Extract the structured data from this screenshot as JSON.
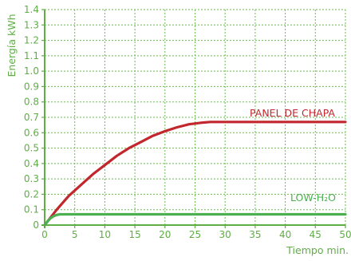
{
  "colors": {
    "axis": "#5fae45",
    "grid": "#6dbb52",
    "panel": "#c1272d",
    "low": "#4caf50"
  },
  "chart_data": {
    "type": "line",
    "title": "",
    "xlabel": "Tiempo min.",
    "ylabel": "Energía kWh",
    "xlim": [
      0,
      50
    ],
    "ylim": [
      0,
      1.4
    ],
    "xticks": [
      "0",
      "5",
      "10",
      "15",
      "20",
      "25",
      "30",
      "35",
      "40",
      "45",
      "50"
    ],
    "yticks": [
      "0",
      "0.1",
      "0.2",
      "0.3",
      "0.4",
      "0.5",
      "0.6",
      "0.7",
      "0.8",
      "0.9",
      "1.0",
      "1.1",
      "1.2",
      "1.3",
      "1.4"
    ],
    "grid": true,
    "series": [
      {
        "name": "PANEL DE CHAPA",
        "color": "#c1272d",
        "x": [
          0,
          2,
          4,
          6,
          8,
          10,
          12,
          14,
          16,
          18,
          20,
          22,
          24,
          26,
          27.5,
          30,
          35,
          40,
          45,
          50
        ],
        "y": [
          0,
          0.1,
          0.19,
          0.26,
          0.33,
          0.39,
          0.45,
          0.5,
          0.54,
          0.58,
          0.61,
          0.635,
          0.655,
          0.665,
          0.67,
          0.67,
          0.67,
          0.67,
          0.67,
          0.67
        ]
      },
      {
        "name": "LOW-H₂O",
        "color": "#4caf50",
        "x": [
          0,
          0.5,
          1,
          1.5,
          2,
          2.5,
          3,
          5,
          10,
          20,
          30,
          40,
          50
        ],
        "y": [
          0,
          0.025,
          0.045,
          0.058,
          0.066,
          0.07,
          0.07,
          0.07,
          0.07,
          0.07,
          0.07,
          0.07,
          0.07
        ]
      }
    ]
  }
}
